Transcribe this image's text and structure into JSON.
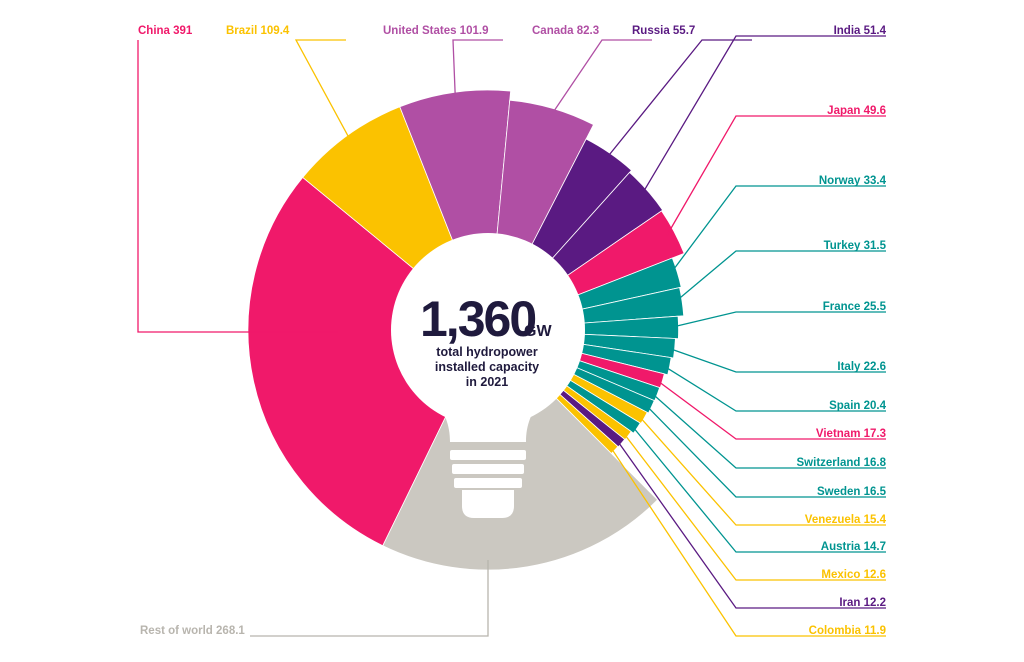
{
  "chart_data": {
    "type": "pie",
    "style": "donut-radial-bars",
    "center": {
      "value": "1,360",
      "unit": "GW",
      "line1": "total hydropower",
      "line2": "installed capacity",
      "line3": "in 2021"
    },
    "series": [
      {
        "name": "China",
        "value": 391,
        "label": "China 391",
        "color": "#f0196a"
      },
      {
        "name": "Brazil",
        "value": 109.4,
        "label": "Brazil 109.4",
        "color": "#fbc200"
      },
      {
        "name": "United States",
        "value": 101.9,
        "label": "United States 101.9",
        "color": "#b04fa4"
      },
      {
        "name": "Canada",
        "value": 82.3,
        "label": "Canada 82.3",
        "color": "#b04fa4"
      },
      {
        "name": "Russia",
        "value": 55.7,
        "label": "Russia 55.7",
        "color": "#5a1a82"
      },
      {
        "name": "India",
        "value": 51.4,
        "label": "India 51.4",
        "color": "#5a1a82"
      },
      {
        "name": "Japan",
        "value": 49.6,
        "label": "Japan 49.6",
        "color": "#f0196a"
      },
      {
        "name": "Norway",
        "value": 33.4,
        "label": "Norway 33.4",
        "color": "#009490"
      },
      {
        "name": "Turkey",
        "value": 31.5,
        "label": "Turkey  31.5",
        "color": "#009490"
      },
      {
        "name": "France",
        "value": 25.5,
        "label": "France 25.5",
        "color": "#009490"
      },
      {
        "name": "Italy",
        "value": 22.6,
        "label": "Italy 22.6",
        "color": "#009490"
      },
      {
        "name": "Spain",
        "value": 20.4,
        "label": "Spain 20.4",
        "color": "#009490"
      },
      {
        "name": "Vietnam",
        "value": 17.3,
        "label": "Vietnam 17.3",
        "color": "#f0196a"
      },
      {
        "name": "Switzerland",
        "value": 16.8,
        "label": "Switzerland 16.8",
        "color": "#009490"
      },
      {
        "name": "Sweden",
        "value": 16.5,
        "label": "Sweden 16.5",
        "color": "#009490"
      },
      {
        "name": "Venezuela",
        "value": 15.4,
        "label": "Venezuela 15.4",
        "color": "#fbc200"
      },
      {
        "name": "Austria",
        "value": 14.7,
        "label": "Austria 14.7",
        "color": "#009490"
      },
      {
        "name": "Mexico",
        "value": 12.6,
        "label": "Mexico 12.6",
        "color": "#fbc200"
      },
      {
        "name": "Iran",
        "value": 12.2,
        "label": "Iran 12.2",
        "color": "#5a1a82"
      },
      {
        "name": "Colombia",
        "value": 11.9,
        "label": "Colombia 11.9",
        "color": "#fbc200"
      },
      {
        "name": "Rest of world",
        "value": 268.1,
        "label": "Rest of world 268.1",
        "color": "#cbc8c1"
      }
    ],
    "bulb_color": "#ffffff",
    "ink_color": "#1f1a3d"
  }
}
